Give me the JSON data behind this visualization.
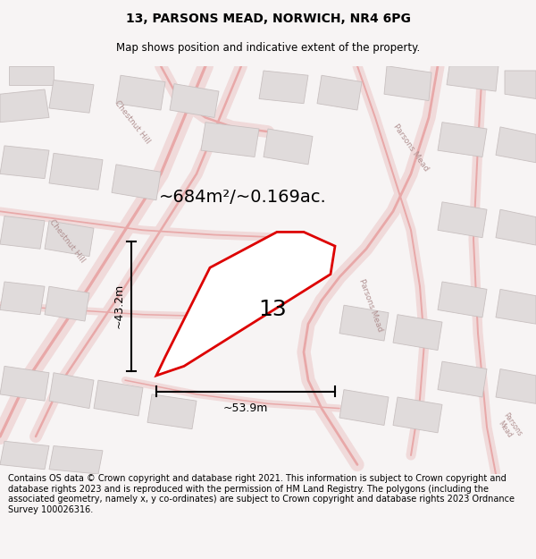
{
  "title_line1": "13, PARSONS MEAD, NORWICH, NR4 6PG",
  "title_line2": "Map shows position and indicative extent of the property.",
  "footer_text": "Contains OS data © Crown copyright and database right 2021. This information is subject to Crown copyright and database rights 2023 and is reproduced with the permission of HM Land Registry. The polygons (including the associated geometry, namely x, y co-ordinates) are subject to Crown copyright and database rights 2023 Ordnance Survey 100026316.",
  "area_label": "~684m²/~0.169ac.",
  "number_label": "13",
  "width_label": "~53.9m",
  "height_label": "~43.2m",
  "bg_color": "#f7f4f4",
  "map_bg": "#f2efef",
  "road_fill": "#f5e0e0",
  "road_edge": "#e8a8a8",
  "building_fill": "#e0dbdb",
  "building_edge": "#c8c0c0",
  "prop_edge": "#dd0000",
  "prop_fill": "#ffffff",
  "title_fontsize": 10,
  "subtitle_fontsize": 8.5,
  "footer_fontsize": 7.0,
  "area_fontsize": 14,
  "number_fontsize": 18,
  "dim_fontsize": 9
}
